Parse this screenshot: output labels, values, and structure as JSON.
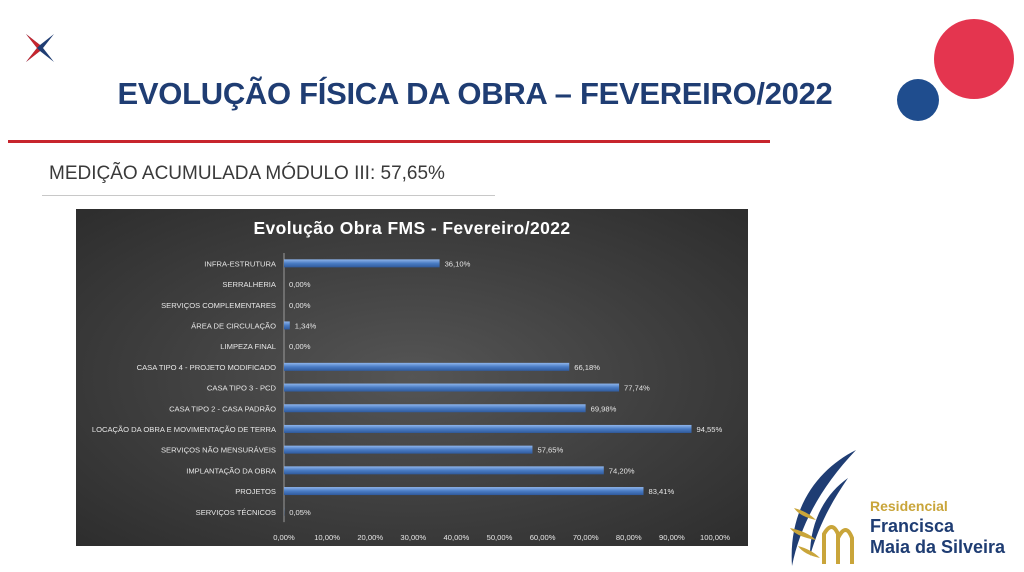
{
  "colors": {
    "navy": "#1f3d73",
    "red": "#c7252d",
    "circle_red": "#e4354f",
    "circle_blue": "#1f4d8e",
    "bar": "#4a7cc4",
    "gold": "#c9a53a"
  },
  "header": {
    "title_main": "EVOLUÇÃO FÍSICA DA OBRA – ",
    "title_date": "FEVEREIRO/2022"
  },
  "subtitle": "MEDIÇÃO ACUMULADA MÓDULO III: 57,65%",
  "brand": {
    "line1": "Residencial",
    "line2": "Francisca",
    "line3": "Maia da Silveira"
  },
  "chart_data": {
    "type": "bar",
    "orientation": "horizontal",
    "title": "Evolução Obra FMS - Fevereiro/2022",
    "categories": [
      "INFRA-ESTRUTURA",
      "SERRALHERIA",
      "SERVIÇOS COMPLEMENTARES",
      "ÁREA DE CIRCULAÇÃO",
      "LIMPEZA FINAL",
      "CASA TIPO 4 - PROJETO MODIFICADO",
      "CASA TIPO 3 - PCD",
      "CASA TIPO 2 - CASA PADRÃO",
      "LOCAÇÃO DA OBRA E MOVIMENTAÇÃO DE TERRA",
      "SERVIÇOS NÃO MENSURÁVEIS",
      "IMPLANTAÇÃO DA OBRA",
      "PROJETOS",
      "SERVIÇOS TÉCNICOS"
    ],
    "values": [
      36.1,
      0.0,
      0.0,
      1.34,
      0.0,
      66.18,
      77.74,
      69.98,
      94.55,
      57.65,
      74.2,
      83.41,
      0.05
    ],
    "value_labels": [
      "36,10%",
      "0,00%",
      "0,00%",
      "1,34%",
      "0,00%",
      "66,18%",
      "77,74%",
      "69,98%",
      "94,55%",
      "57,65%",
      "74,20%",
      "83,41%",
      "0,05%"
    ],
    "x_ticks": [
      "0,00%",
      "10,00%",
      "20,00%",
      "30,00%",
      "40,00%",
      "50,00%",
      "60,00%",
      "70,00%",
      "80,00%",
      "90,00%",
      "100,00%"
    ],
    "xlim": [
      0,
      100
    ],
    "grid": false,
    "legend": "none"
  }
}
